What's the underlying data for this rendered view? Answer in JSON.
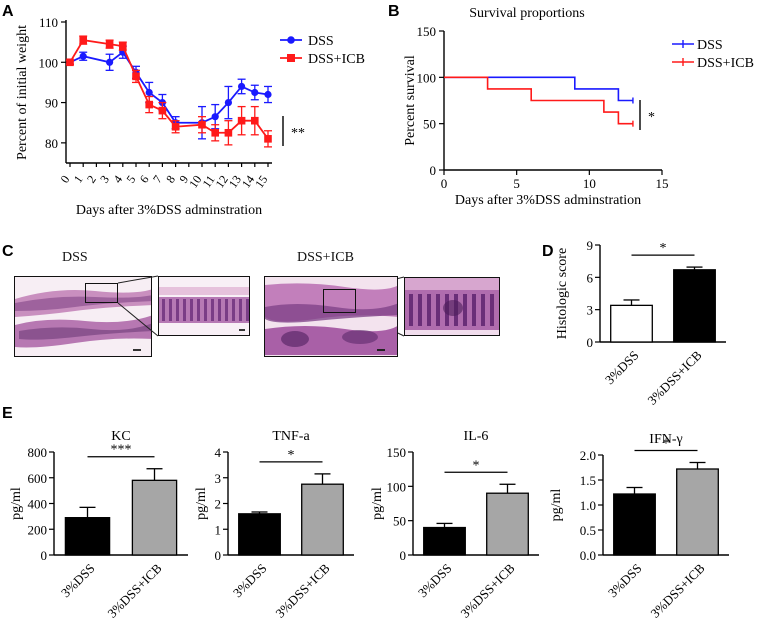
{
  "figure": {
    "panels": {
      "A": {
        "letter": "A"
      },
      "B": {
        "letter": "B"
      },
      "C": {
        "letter": "C",
        "label_dss": "DSS",
        "label_dss_icb": "DSS+ICB"
      },
      "D": {
        "letter": "D"
      },
      "E": {
        "letter": "E"
      }
    }
  },
  "chart_data": [
    {
      "id": "A",
      "type": "line",
      "title": "",
      "xlabel": "Days after 3%DSS adminstration",
      "ylabel": "Percent of initial weight",
      "x": [
        0,
        1,
        2,
        3,
        4,
        5,
        6,
        7,
        8,
        9,
        10,
        11,
        12,
        13,
        14,
        15
      ],
      "xlim": [
        0,
        15
      ],
      "ylim": [
        75,
        110
      ],
      "yticks": [
        80,
        90,
        100,
        110
      ],
      "xticks": [
        "0",
        "1",
        "2",
        "3",
        "4",
        "5",
        "6",
        "7",
        "8",
        "9",
        "10",
        "11",
        "12",
        "13",
        "14",
        "15"
      ],
      "series": [
        {
          "name": "DSS",
          "color": "#1a1aff",
          "marker": "circle",
          "x": [
            0,
            1,
            3,
            4,
            5,
            6,
            7,
            8,
            10,
            11,
            12,
            13,
            14,
            15
          ],
          "values": [
            100,
            101.5,
            100,
            102.5,
            97.5,
            92.5,
            90,
            85,
            85,
            86.5,
            90,
            94,
            92.5,
            92
          ],
          "err": [
            0.5,
            1,
            2,
            1.5,
            1.5,
            2.5,
            2,
            1.5,
            4,
            3,
            4,
            1.8,
            1.8,
            2
          ]
        },
        {
          "name": "DSS+ICB",
          "color": "#ff1a1a",
          "marker": "square",
          "x": [
            0,
            1,
            3,
            4,
            5,
            6,
            7,
            8,
            10,
            11,
            12,
            13,
            14,
            15
          ],
          "values": [
            100,
            105.5,
            104.5,
            104,
            96.5,
            89.5,
            88,
            84,
            84.5,
            82.5,
            82.5,
            85.5,
            85.5,
            81
          ],
          "err": [
            0.5,
            1,
            1,
            1,
            1.5,
            2,
            2,
            1.5,
            2,
            2,
            3,
            3.5,
            3.5,
            2
          ]
        }
      ],
      "annotation": "**"
    },
    {
      "id": "B",
      "type": "line",
      "title": "Survival proportions",
      "xlabel": "Days after 3%DSS adminstration",
      "ylabel": "Percent survival",
      "xlim": [
        0,
        15
      ],
      "ylim": [
        0,
        150
      ],
      "xticks": [
        0,
        5,
        10,
        15
      ],
      "yticks": [
        0,
        50,
        100,
        150
      ],
      "series": [
        {
          "name": "DSS",
          "color": "#1a1aff",
          "steps": [
            [
              0,
              100
            ],
            [
              9,
              100
            ],
            [
              9,
              87.5
            ],
            [
              12,
              87.5
            ],
            [
              12,
              75
            ],
            [
              13,
              75
            ]
          ]
        },
        {
          "name": "DSS+ICB",
          "color": "#ff1a1a",
          "steps": [
            [
              0,
              100
            ],
            [
              3,
              100
            ],
            [
              3,
              87.5
            ],
            [
              6,
              87.5
            ],
            [
              6,
              75
            ],
            [
              11,
              75
            ],
            [
              11,
              62.5
            ],
            [
              12,
              62.5
            ],
            [
              12,
              50
            ],
            [
              13,
              50
            ]
          ]
        }
      ],
      "annotation": "*"
    },
    {
      "id": "D",
      "type": "bar",
      "title": "",
      "ylabel": "Histologic score",
      "categories": [
        "3%DSS",
        "3%DSS+ICB"
      ],
      "values": [
        3.4,
        6.7
      ],
      "err": [
        0.5,
        0.25
      ],
      "colors": [
        "#ffffff",
        "#000000"
      ],
      "ylim": [
        0,
        9
      ],
      "yticks": [
        0,
        3,
        6,
        9
      ],
      "annotation": "*"
    },
    {
      "id": "E1",
      "type": "bar",
      "title": "KC",
      "ylabel": "pg/ml",
      "categories": [
        "3%DSS",
        "3%DSS+ICB"
      ],
      "values": [
        290,
        580
      ],
      "err": [
        80,
        90
      ],
      "colors": [
        "#000000",
        "#a6a6a6"
      ],
      "ylim": [
        0,
        800
      ],
      "yticks": [
        0,
        200,
        400,
        600,
        800
      ],
      "annotation": "***"
    },
    {
      "id": "E2",
      "type": "bar",
      "title": "TNF-a",
      "ylabel": "pg/ml",
      "categories": [
        "3%DSS",
        "3%DSS+ICB"
      ],
      "values": [
        1.6,
        2.75
      ],
      "err": [
        0.07,
        0.4
      ],
      "colors": [
        "#000000",
        "#a6a6a6"
      ],
      "ylim": [
        0,
        4
      ],
      "yticks": [
        0,
        1,
        2,
        3,
        4
      ],
      "annotation": "*"
    },
    {
      "id": "E3",
      "type": "bar",
      "title": "IL-6",
      "ylabel": "pg/ml",
      "categories": [
        "3%DSS",
        "3%DSS+ICB"
      ],
      "values": [
        40,
        90
      ],
      "err": [
        6,
        13
      ],
      "colors": [
        "#000000",
        "#a6a6a6"
      ],
      "ylim": [
        0,
        150
      ],
      "yticks": [
        0,
        50,
        100,
        150
      ],
      "annotation": "*"
    },
    {
      "id": "E4",
      "type": "bar",
      "title": "IFN-γ",
      "ylabel": "pg/ml",
      "categories": [
        "3%DSS",
        "3%DSS+ICB"
      ],
      "values": [
        1.22,
        1.72
      ],
      "err": [
        0.13,
        0.13
      ],
      "colors": [
        "#000000",
        "#a6a6a6"
      ],
      "ylim": [
        0,
        2.0
      ],
      "yticks": [
        "0.0",
        "0.5",
        "1.0",
        "1.5",
        "2.0"
      ],
      "annotation": "*"
    }
  ]
}
